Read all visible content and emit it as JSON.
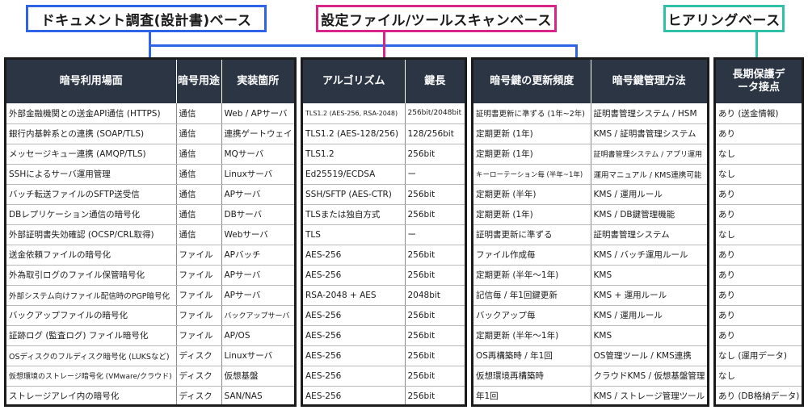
{
  "labels": {
    "doc": "ドキュメント調査(設計書)ベース",
    "scan": "設定ファイル/ツールスキャンベース",
    "hearing": "ヒアリングベース"
  },
  "colors": {
    "doc": "#2f63e8",
    "scan": "#d9258a",
    "hearing": "#2fc0a8",
    "header_bg": "#2b3544"
  },
  "headers": {
    "scene": "暗号利用場面",
    "purpose": "暗号用途",
    "location": "実装箇所",
    "algorithm": "アルゴリズム",
    "keylength": "鍵長",
    "frequency": "暗号鍵の更新頻度",
    "management": "暗号鍵管理方法",
    "longterm": "長期保護データ接点"
  },
  "rows": [
    {
      "scene": "外部金融機関との送金API通信 (HTTPS)",
      "purpose": "通信",
      "location": "Web / APサーバ",
      "algorithm": "TLS1.2 (AES-256, RSA-2048)",
      "keylength": "256bit/2048bit",
      "frequency": "証明書更新に準ずる (1年~2年)",
      "management": "証明書管理システム / HSM",
      "longterm": "あり (送金情報)"
    },
    {
      "scene": "銀行内基幹系との連携 (SOAP/TLS)",
      "purpose": "通信",
      "location": "連携ゲートウェイ",
      "algorithm": "TLS1.2 (AES-128/256)",
      "keylength": "128/256bit",
      "frequency": "定期更新 (1年)",
      "management": "KMS / 証明書管理システム",
      "longterm": "あり"
    },
    {
      "scene": "メッセージキュー連携 (AMQP/TLS)",
      "purpose": "通信",
      "location": "MQサーバ",
      "algorithm": "TLS1.2",
      "keylength": "256bit",
      "frequency": "定期更新 (1年)",
      "management": "証明書管理システム / アプリ運用",
      "longterm": "なし"
    },
    {
      "scene": "SSHによるサーバ運用管理",
      "purpose": "通信",
      "location": "Linuxサーバ",
      "algorithm": "Ed25519/ECDSA",
      "keylength": "ー",
      "frequency": "キーローテーション毎 (半年~1年)",
      "management": "運用マニュアル / KMS連携可能",
      "longterm": "なし"
    },
    {
      "scene": "バッチ転送ファイルのSFTP送受信",
      "purpose": "通信",
      "location": "APサーバ",
      "algorithm": "SSH/SFTP (AES-CTR)",
      "keylength": "256bit",
      "frequency": "定期更新 (半年)",
      "management": "KMS / 運用ルール",
      "longterm": "あり"
    },
    {
      "scene": "DBレプリケーション通信の暗号化",
      "purpose": "通信",
      "location": "DBサーバ",
      "algorithm": "TLSまたは独自方式",
      "keylength": "256bit",
      "frequency": "定期更新 (1年)",
      "management": "KMS / DB鍵管理機能",
      "longterm": "あり"
    },
    {
      "scene": "外部証明書失効確認 (OCSP/CRL取得)",
      "purpose": "通信",
      "location": "Webサーバ",
      "algorithm": "TLS",
      "keylength": "ー",
      "frequency": "証明書更新に準ずる",
      "management": "証明書管理システム",
      "longterm": "なし"
    },
    {
      "scene": "送金依頼ファイルの暗号化",
      "purpose": "ファイル",
      "location": "APバッチ",
      "algorithm": "AES-256",
      "keylength": "256bit",
      "frequency": "ファイル作成毎",
      "management": "KMS / バッチ運用ルール",
      "longterm": "あり"
    },
    {
      "scene": "外為取引ログのファイル保管暗号化",
      "purpose": "ファイル",
      "location": "APサーバ",
      "algorithm": "AES-256",
      "keylength": "256bit",
      "frequency": "定期更新 (半年〜1年)",
      "management": "KMS",
      "longterm": "あり"
    },
    {
      "scene": "外部システム向けファイル配信時のPGP暗号化",
      "purpose": "ファイル",
      "location": "APサーバ",
      "algorithm": "RSA-2048 + AES",
      "keylength": "2048bit",
      "frequency": "記信毎 / 年1回鍵更新",
      "management": "KMS + 運用ルール",
      "longterm": "あり"
    },
    {
      "scene": "バックアップファイルの暗号化",
      "purpose": "ファイル",
      "location": "バックアップサーバ",
      "algorithm": "AES-256",
      "keylength": "256bit",
      "frequency": "バックアップ毎",
      "management": "KMS / 運用ルール",
      "longterm": "あり"
    },
    {
      "scene": "証跡ログ (監査ログ) ファイル暗号化",
      "purpose": "ファイル",
      "location": "AP/OS",
      "algorithm": "AES-256",
      "keylength": "256bit",
      "frequency": "定期更新 (半年〜1年)",
      "management": "KMS",
      "longterm": "あり"
    },
    {
      "scene": "OSディスクのフルディスク暗号化 (LUKSなど)",
      "purpose": "ディスク",
      "location": "Linuxサーバ",
      "algorithm": "AES-256",
      "keylength": "256bit",
      "frequency": "OS再構築時 / 年1回",
      "management": "OS管理ツール / KMS連携",
      "longterm": "なし (運用データ)"
    },
    {
      "scene": "仮想環境のストレージ暗号化 (VMware/クラウド)",
      "purpose": "ディスク",
      "location": "仮想基盤",
      "algorithm": "AES-256",
      "keylength": "256bit",
      "frequency": "仮想環境再構築時",
      "management": "クラウドKMS / 仮想基盤管理",
      "longterm": "なし"
    },
    {
      "scene": "ストレージアレイ内の暗号化",
      "purpose": "ディスク",
      "location": "SAN/NAS",
      "algorithm": "AES-256",
      "keylength": "256bit",
      "frequency": "年1回",
      "management": "KMS / ストレージ管理ツール",
      "longterm": "あり (DB格納データ)"
    }
  ]
}
